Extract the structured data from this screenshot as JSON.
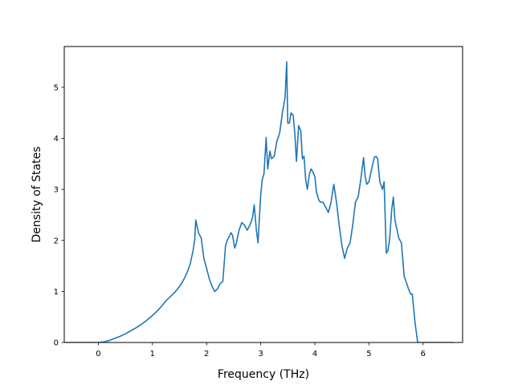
{
  "chart_data": {
    "type": "line",
    "title": "",
    "xlabel": "Frequency (THz)",
    "ylabel": "Density of States",
    "xlim": [
      -0.63,
      6.73
    ],
    "ylim": [
      0,
      5.8
    ],
    "xticks": [
      0,
      1,
      2,
      3,
      4,
      5,
      6
    ],
    "yticks": [
      0,
      1,
      2,
      3,
      4,
      5
    ],
    "grid": false,
    "legend": "none",
    "line_color": "#1f77b4",
    "series": [
      {
        "x": [
          -0.6,
          -0.4,
          -0.2,
          0.0,
          0.1,
          0.2,
          0.3,
          0.4,
          0.5,
          0.6,
          0.7,
          0.8,
          0.9,
          1.0,
          1.1,
          1.2,
          1.25,
          1.3,
          1.35,
          1.4,
          1.45,
          1.5,
          1.55,
          1.6,
          1.65,
          1.7,
          1.75,
          1.78,
          1.8,
          1.85,
          1.9,
          1.95,
          2.0,
          2.05,
          2.1,
          2.15,
          2.2,
          2.25,
          2.3,
          2.35,
          2.38,
          2.42,
          2.45,
          2.48,
          2.52,
          2.55,
          2.6,
          2.65,
          2.7,
          2.75,
          2.8,
          2.85,
          2.88,
          2.92,
          2.95,
          3.0,
          3.03,
          3.06,
          3.1,
          3.13,
          3.17,
          3.2,
          3.25,
          3.3,
          3.35,
          3.4,
          3.45,
          3.48,
          3.5,
          3.53,
          3.56,
          3.6,
          3.63,
          3.66,
          3.7,
          3.74,
          3.77,
          3.8,
          3.83,
          3.86,
          3.9,
          3.93,
          3.96,
          4.0,
          4.03,
          4.07,
          4.1,
          4.15,
          4.2,
          4.25,
          4.3,
          4.35,
          4.4,
          4.45,
          4.5,
          4.55,
          4.6,
          4.65,
          4.7,
          4.75,
          4.8,
          4.85,
          4.9,
          4.93,
          4.96,
          5.0,
          5.03,
          5.06,
          5.1,
          5.13,
          5.16,
          5.2,
          5.25,
          5.28,
          5.32,
          5.35,
          5.38,
          5.42,
          5.45,
          5.48,
          5.52,
          5.55,
          5.6,
          5.65,
          5.7,
          5.73,
          5.77,
          5.8,
          5.85,
          5.9,
          5.93,
          5.97,
          6.0,
          6.05,
          6.2,
          6.3,
          6.56
        ],
        "y": [
          0,
          0,
          0,
          0,
          0.01,
          0.04,
          0.08,
          0.12,
          0.17,
          0.23,
          0.29,
          0.36,
          0.44,
          0.53,
          0.63,
          0.75,
          0.82,
          0.87,
          0.92,
          0.97,
          1.03,
          1.1,
          1.18,
          1.28,
          1.4,
          1.55,
          1.8,
          2.0,
          2.4,
          2.15,
          2.05,
          1.65,
          1.45,
          1.25,
          1.1,
          1.0,
          1.05,
          1.15,
          1.2,
          1.9,
          2.0,
          2.08,
          2.15,
          2.1,
          1.85,
          1.95,
          2.2,
          2.35,
          2.3,
          2.2,
          2.3,
          2.45,
          2.7,
          2.2,
          1.95,
          2.9,
          3.2,
          3.3,
          4.02,
          3.4,
          3.75,
          3.6,
          3.65,
          3.95,
          4.1,
          4.5,
          4.8,
          5.5,
          4.3,
          4.3,
          4.5,
          4.45,
          4.1,
          3.55,
          4.25,
          4.15,
          3.6,
          3.65,
          3.2,
          3.0,
          3.3,
          3.4,
          3.35,
          3.25,
          2.95,
          2.8,
          2.75,
          2.75,
          2.65,
          2.55,
          2.75,
          3.1,
          2.75,
          2.3,
          1.9,
          1.65,
          1.85,
          1.95,
          2.3,
          2.75,
          2.85,
          3.2,
          3.62,
          3.25,
          3.1,
          3.15,
          3.3,
          3.45,
          3.63,
          3.65,
          3.6,
          3.15,
          3.0,
          3.15,
          1.75,
          1.8,
          2.0,
          2.6,
          2.85,
          2.4,
          2.2,
          2.05,
          1.95,
          1.3,
          1.15,
          1.05,
          0.95,
          0.95,
          0.4,
          0.0,
          0.0,
          0.0,
          0.0,
          0.0,
          0.0,
          0.0,
          0.0
        ]
      }
    ]
  }
}
